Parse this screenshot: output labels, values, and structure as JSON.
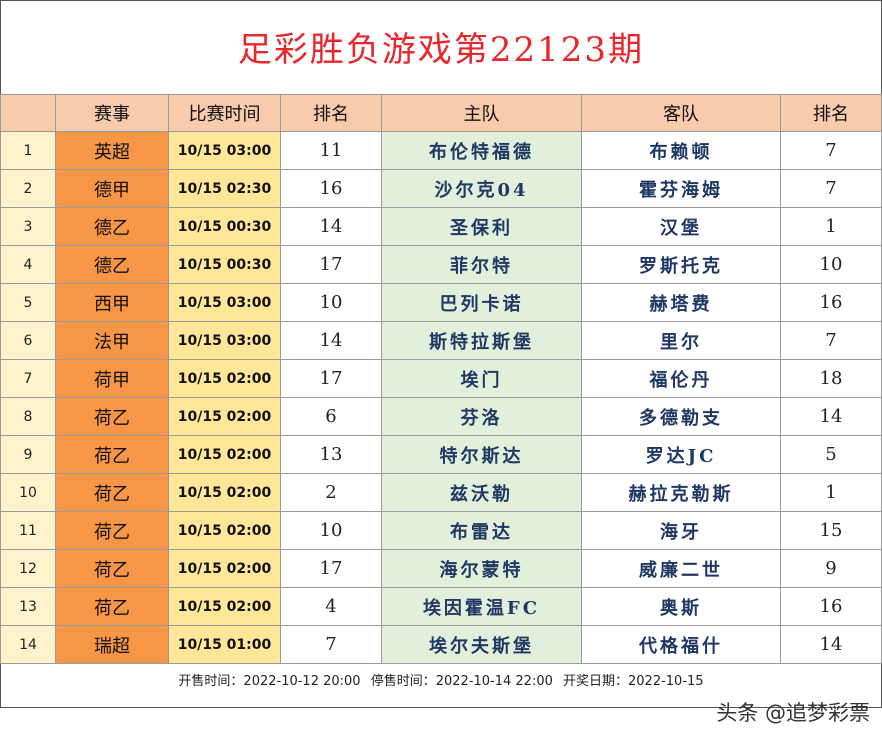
{
  "title": "足彩胜负游戏第22123期",
  "headers": [
    "",
    "赛事",
    "比赛时间",
    "排名",
    "主队",
    "客队",
    "排名"
  ],
  "rows": [
    {
      "idx": "1",
      "league": "英超",
      "time": "10/15 03:00",
      "home_rank": "11",
      "home": "布伦特福德",
      "away": "布赖顿",
      "away_rank": "7"
    },
    {
      "idx": "2",
      "league": "德甲",
      "time": "10/15 02:30",
      "home_rank": "16",
      "home": "沙尔克04",
      "away": "霍芬海姆",
      "away_rank": "7"
    },
    {
      "idx": "3",
      "league": "德乙",
      "time": "10/15 00:30",
      "home_rank": "14",
      "home": "圣保利",
      "away": "汉堡",
      "away_rank": "1"
    },
    {
      "idx": "4",
      "league": "德乙",
      "time": "10/15 00:30",
      "home_rank": "17",
      "home": "菲尔特",
      "away": "罗斯托克",
      "away_rank": "10"
    },
    {
      "idx": "5",
      "league": "西甲",
      "time": "10/15 03:00",
      "home_rank": "10",
      "home": "巴列卡诺",
      "away": "赫塔费",
      "away_rank": "16"
    },
    {
      "idx": "6",
      "league": "法甲",
      "time": "10/15 03:00",
      "home_rank": "14",
      "home": "斯特拉斯堡",
      "away": "里尔",
      "away_rank": "7"
    },
    {
      "idx": "7",
      "league": "荷甲",
      "time": "10/15 02:00",
      "home_rank": "17",
      "home": "埃门",
      "away": "福伦丹",
      "away_rank": "18"
    },
    {
      "idx": "8",
      "league": "荷乙",
      "time": "10/15 02:00",
      "home_rank": "6",
      "home": "芬洛",
      "away": "多德勒支",
      "away_rank": "14"
    },
    {
      "idx": "9",
      "league": "荷乙",
      "time": "10/15 02:00",
      "home_rank": "13",
      "home": "特尔斯达",
      "away": "罗达JC",
      "away_rank": "5"
    },
    {
      "idx": "10",
      "league": "荷乙",
      "time": "10/15 02:00",
      "home_rank": "2",
      "home": "兹沃勒",
      "away": "赫拉克勒斯",
      "away_rank": "1"
    },
    {
      "idx": "11",
      "league": "荷乙",
      "time": "10/15 02:00",
      "home_rank": "10",
      "home": "布雷达",
      "away": "海牙",
      "away_rank": "15"
    },
    {
      "idx": "12",
      "league": "荷乙",
      "time": "10/15 02:00",
      "home_rank": "17",
      "home": "海尔蒙特",
      "away": "威廉二世",
      "away_rank": "9"
    },
    {
      "idx": "13",
      "league": "荷乙",
      "time": "10/15 02:00",
      "home_rank": "4",
      "home": "埃因霍温FC",
      "away": "奥斯",
      "away_rank": "16"
    },
    {
      "idx": "14",
      "league": "瑞超",
      "time": "10/15 01:00",
      "home_rank": "7",
      "home": "埃尔夫斯堡",
      "away": "代格福什",
      "away_rank": "14"
    }
  ],
  "footer": {
    "sale_start": "开售时间：2022-10-12 20:00",
    "sale_stop": "停售时间：2022-10-14 22:00",
    "draw_date": "开奖日期：2022-10-15"
  },
  "watermark": "头条 @追梦彩票",
  "colors": {
    "title": "#e8262b",
    "header_bg": "#f8cbad",
    "index_bg": "#fff2cc",
    "league_bg": "#f79646",
    "time_bg": "#ffe699",
    "home_bg": "#e2efda",
    "team_text": "#1f3864"
  }
}
